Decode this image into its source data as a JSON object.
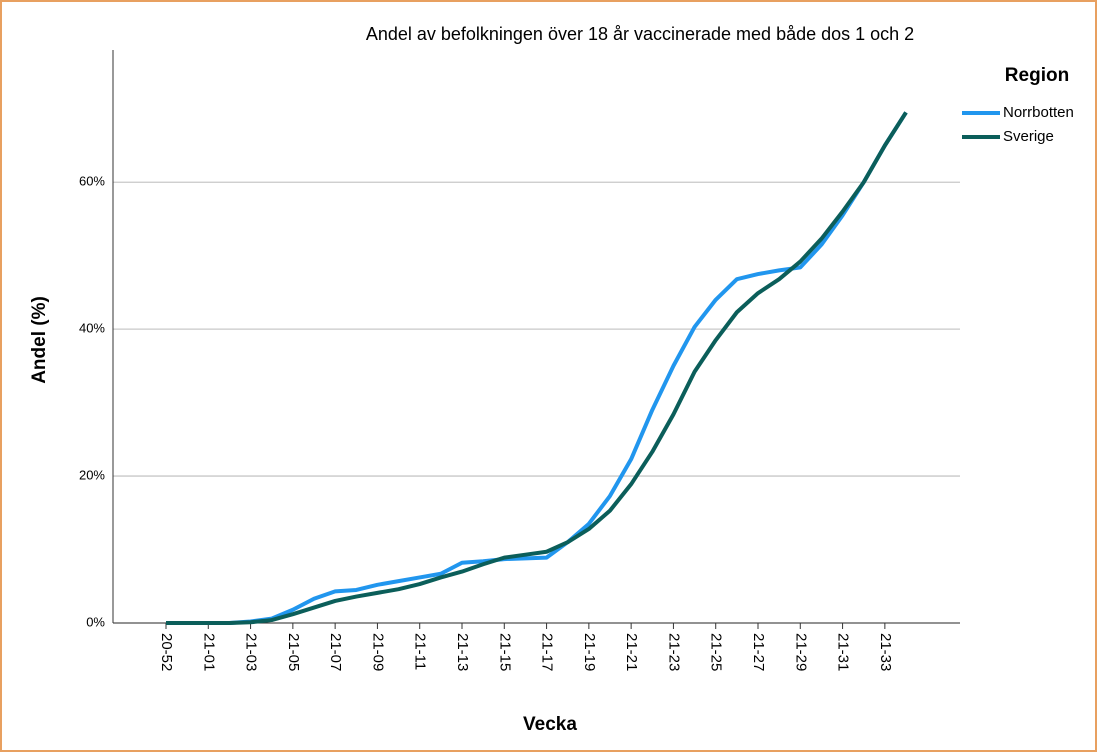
{
  "chart_data": {
    "type": "line",
    "title": "Andel av befolkningen över 18 år vaccinerade med både dos 1 och 2",
    "x_label": "Vecka",
    "y_label": "Andel (%)",
    "legend_title": "Region",
    "legend": "right",
    "categories": [
      "20-52",
      null,
      "21-01",
      null,
      "21-03",
      null,
      "21-05",
      null,
      "21-07",
      null,
      "21-09",
      null,
      "21-11",
      null,
      "21-13",
      null,
      "21-15",
      null,
      "21-17",
      null,
      "21-19",
      null,
      "21-21",
      null,
      "21-23",
      null,
      "21-25",
      null,
      "21-27",
      null,
      "21-29",
      null,
      "21-31",
      null,
      "21-33",
      null
    ],
    "series": [
      {
        "name": "Norrbotten",
        "color": "#2196ee",
        "values": [
          0,
          0,
          0,
          0,
          0.2,
          0.6,
          1.8,
          3.3,
          4.3,
          4.5,
          5.2,
          5.7,
          6.2,
          6.7,
          8.2,
          8.4,
          8.7,
          8.8,
          8.9,
          11.0,
          13.5,
          17.3,
          22.3,
          29,
          35,
          40.3,
          44,
          46.8,
          47.5,
          48,
          48.4,
          51.5,
          55.5,
          60,
          65,
          69.5
        ]
      },
      {
        "name": "Sverige",
        "color": "#0b5e5a",
        "values": [
          0,
          0,
          0,
          0,
          0.1,
          0.4,
          1.2,
          2.1,
          3.0,
          3.6,
          4.1,
          4.6,
          5.3,
          6.2,
          7.0,
          8.0,
          8.9,
          9.3,
          9.7,
          11.0,
          12.8,
          15.3,
          18.9,
          23.3,
          28.4,
          34.2,
          38.5,
          42.3,
          44.9,
          46.8,
          49.2,
          52.3,
          56,
          60,
          65,
          69.5
        ]
      }
    ],
    "ylim": [
      0,
      78
    ],
    "yticks": [
      {
        "value": 0,
        "label": "0%"
      },
      {
        "value": 20,
        "label": "20%"
      },
      {
        "value": 40,
        "label": "40%"
      },
      {
        "value": 60,
        "label": "60%"
      }
    ],
    "grid": true
  }
}
